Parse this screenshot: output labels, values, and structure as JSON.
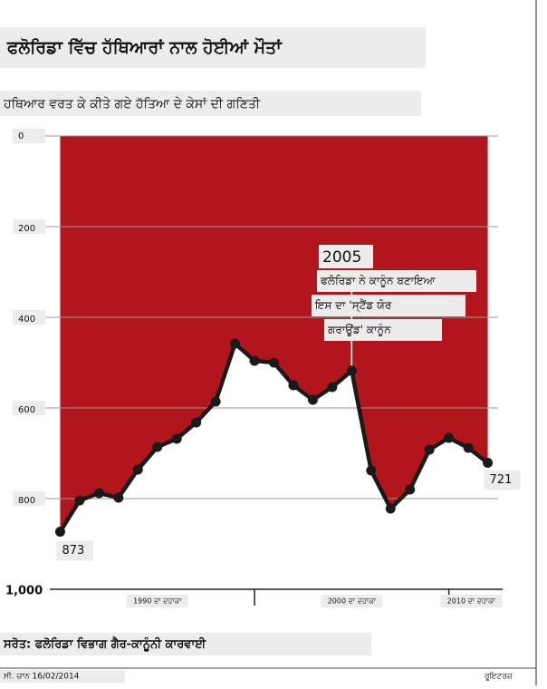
{
  "chart_data": {
    "type": "line",
    "title": "ਫਲੋਰਿਡਾ ਵਿੱਚ ਹੱਥਿਆਰਾਂ ਨਾਲ ਹੋਈਆਂ ਮੌਤਾਂ",
    "subtitle": "ਹਥਿਆਰ ਵਰਤ ਕੇ ਕੀਤੇ ਗਏ ਹੱਤਿਆ ਦੇ ਕੇਸਾਂ ਦੀ ਗਣਿਤੀ",
    "x": [
      1990,
      1991,
      1992,
      1993,
      1994,
      1995,
      1996,
      1997,
      1998,
      1999,
      2000,
      2001,
      2002,
      2003,
      2004,
      2005,
      2006,
      2007,
      2008,
      2009,
      2010,
      2011,
      2012
    ],
    "series": [
      {
        "color": "#1a1a1a",
        "fill": "#b0161c",
        "values": [
          873,
          804,
          788,
          798,
          736,
          686,
          668,
          632,
          586,
          458,
          496,
          500,
          550,
          582,
          554,
          518,
          738,
          822,
          780,
          692,
          666,
          688,
          721
        ]
      }
    ],
    "xlim": [
      1989.7,
      2012.3
    ],
    "xticks": [
      {
        "value": 1990,
        "label": "1990 ਦਾ ਦਹਾਕਾ"
      },
      {
        "value": 2000,
        "label": "2000 ਦਾ ਦਹਾਕਾ"
      },
      {
        "value": 2010,
        "label": "2010 ਦਾ ਦਹਾਕਾ"
      }
    ],
    "ylim": [
      0,
      1000
    ],
    "yticks": [
      0,
      200,
      400,
      600,
      800,
      {
        "value": 1000,
        "label": "1,000"
      }
    ],
    "y_inverted": true,
    "grid": true,
    "annotation": {
      "x": 2005,
      "year": "2005",
      "lines": [
        "ਫਲੋਰਿਡਾ ਨੇ ਕਾਨੂੰਨ ਬਣਾਇਆ",
        "ਇਸ ਦਾ 'ਸ੍ਟੈਂਡ ਯੋਰ",
        "ਗਰਾਊਂਡ' ਕਾਨੂੰਨ"
      ]
    },
    "source": "ਸਰੋਤ: ਫਲੋਰਿਡਾ ਵਿਭਾਗ ਗੈਰ-ਕਾਨੂੰਨੀ ਕਾਰਵਾਈ",
    "credit": "ਸੀ. ਚਾਨ 16/02/2014",
    "publisher": "ਰੂਇਟਰਜ਼"
  }
}
